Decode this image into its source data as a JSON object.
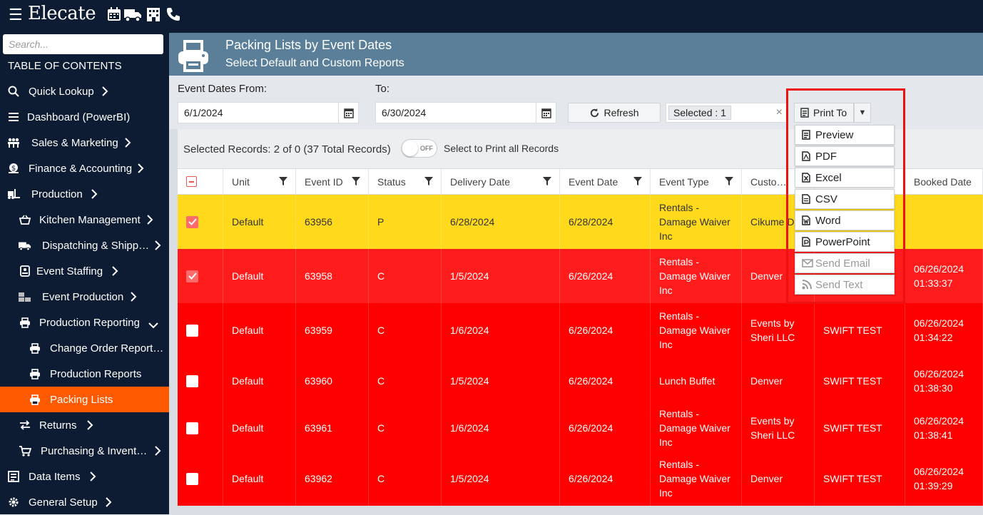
{
  "app": {
    "logo": "Elecate"
  },
  "topbar_icons": [
    "calendar-icon",
    "truck-icon",
    "building-icon",
    "phone-icon"
  ],
  "sidebar": {
    "search_placeholder": "Search...",
    "toc_title": "TABLE OF CONTENTS",
    "items": [
      {
        "label": "Quick Lookup",
        "icon": "search-icon",
        "chevron": "›"
      },
      {
        "label": "Dashboard (PowerBI)",
        "icon": "list-icon",
        "chevron": ""
      },
      {
        "label": "Sales & Marketing",
        "icon": "people-icon",
        "chevron": "›"
      },
      {
        "label": "Finance & Accounting",
        "icon": "money-icon",
        "chevron": "›"
      },
      {
        "label": "Production",
        "icon": "forklift-icon",
        "chevron": "›"
      },
      {
        "label": "Kitchen Management",
        "icon": "basket-icon",
        "chevron": "›"
      },
      {
        "label": "Dispatching & Shipp…",
        "icon": "truck-icon",
        "chevron": "›"
      },
      {
        "label": "Event Staffing",
        "icon": "badge-icon",
        "chevron": "›"
      },
      {
        "label": "Event Production",
        "icon": "boxes-icon",
        "chevron": "›"
      },
      {
        "label": "Production Reporting",
        "icon": "printer-icon",
        "chevron": "⌄"
      },
      {
        "label": "Change Order Report…",
        "icon": "printer-icon",
        "chevron": ""
      },
      {
        "label": "Production Reports",
        "icon": "printer-icon",
        "chevron": ""
      },
      {
        "label": "Packing Lists",
        "icon": "printer-icon",
        "chevron": ""
      },
      {
        "label": "Returns",
        "icon": "swap-icon",
        "chevron": "›"
      },
      {
        "label": "Purchasing & Invent…",
        "icon": "cart-icon",
        "chevron": "›"
      },
      {
        "label": "Data Items",
        "icon": "data-icon",
        "chevron": "›"
      },
      {
        "label": "General Setup",
        "icon": "gear-icon",
        "chevron": "›"
      }
    ]
  },
  "header": {
    "title": "Packing Lists by Event Dates",
    "subtitle": "Select Default and Custom Reports"
  },
  "filters": {
    "from_label": "Event Dates From:",
    "from_value": "6/1/2024",
    "to_label": "To:",
    "to_value": "6/30/2024",
    "refresh_label": "Refresh",
    "selected_chip": "Selected : 1",
    "clear_symbol": "×"
  },
  "print_menu": {
    "button_label": "Print To",
    "caret": "▼",
    "items": [
      {
        "label": "Preview",
        "enabled": true
      },
      {
        "label": "PDF",
        "enabled": true
      },
      {
        "label": "Excel",
        "enabled": true
      },
      {
        "label": "CSV",
        "enabled": true
      },
      {
        "label": "Word",
        "enabled": true
      },
      {
        "label": "PowerPoint",
        "enabled": true
      },
      {
        "label": "Send Email",
        "enabled": false
      },
      {
        "label": "Send Text",
        "enabled": false
      }
    ]
  },
  "records": {
    "summary": "Selected Records: 2 of 0 (37 Total Records)",
    "toggle_state": "OFF",
    "toggle_label": "Select to Print all Records"
  },
  "table": {
    "columns": [
      "Unit",
      "Event ID",
      "Status",
      "Delivery Date",
      "Event Date",
      "Event Type",
      "Custo…",
      "",
      "Booked Date"
    ],
    "rows": [
      {
        "checked": true,
        "color": "#ffd91c",
        "unit": "Default",
        "event_id": "63956",
        "status": "P",
        "delivery": "6/28/2024",
        "event_date": "6/28/2024",
        "event_type": "Rentals - Damage Waiver Inc",
        "customer": "Cikume D",
        "salesperson": "",
        "booked": ""
      },
      {
        "checked": true,
        "color": "#ff1c1c",
        "unit": "Default",
        "event_id": "63958",
        "status": "C",
        "delivery": "1/5/2024",
        "event_date": "6/26/2024",
        "event_type": "Rentals - Damage Waiver Inc",
        "customer": "Denver",
        "salesperson": "",
        "booked": "06/26/2024 01:33:37"
      },
      {
        "checked": false,
        "color": "#ff0000",
        "unit": "Default",
        "event_id": "63959",
        "status": "C",
        "delivery": "1/6/2024",
        "event_date": "6/26/2024",
        "event_type": "Rentals - Damage Waiver Inc",
        "customer": "Events by Sheri LLC",
        "salesperson": "SWIFT TEST",
        "booked": "06/26/2024 01:34:22"
      },
      {
        "checked": false,
        "color": "#ff0000",
        "unit": "Default",
        "event_id": "63960",
        "status": "C",
        "delivery": "1/5/2024",
        "event_date": "6/26/2024",
        "event_type": "Lunch Buffet",
        "customer": "Denver",
        "salesperson": "SWIFT TEST",
        "booked": "06/26/2024 01:38:30"
      },
      {
        "checked": false,
        "color": "#ff0000",
        "unit": "Default",
        "event_id": "63961",
        "status": "C",
        "delivery": "1/6/2024",
        "event_date": "6/26/2024",
        "event_type": "Rentals - Damage Waiver Inc",
        "customer": "Events by Sheri LLC",
        "salesperson": "SWIFT TEST",
        "booked": "06/26/2024 01:38:41"
      },
      {
        "checked": false,
        "color": "#ff0000",
        "unit": "Default",
        "event_id": "63962",
        "status": "C",
        "delivery": "1/5/2024",
        "event_date": "6/26/2024",
        "event_type": "Rentals - Damage Waiver Inc",
        "customer": "Denver",
        "salesperson": "SWIFT TEST",
        "booked": "06/26/2024 01:39:29"
      }
    ]
  },
  "colors": {
    "sidebar_bg": "#0d1b33",
    "active_item": "#ff5a00",
    "header_bg": "#5b7f99",
    "highlight_frame": "#ee1111"
  }
}
